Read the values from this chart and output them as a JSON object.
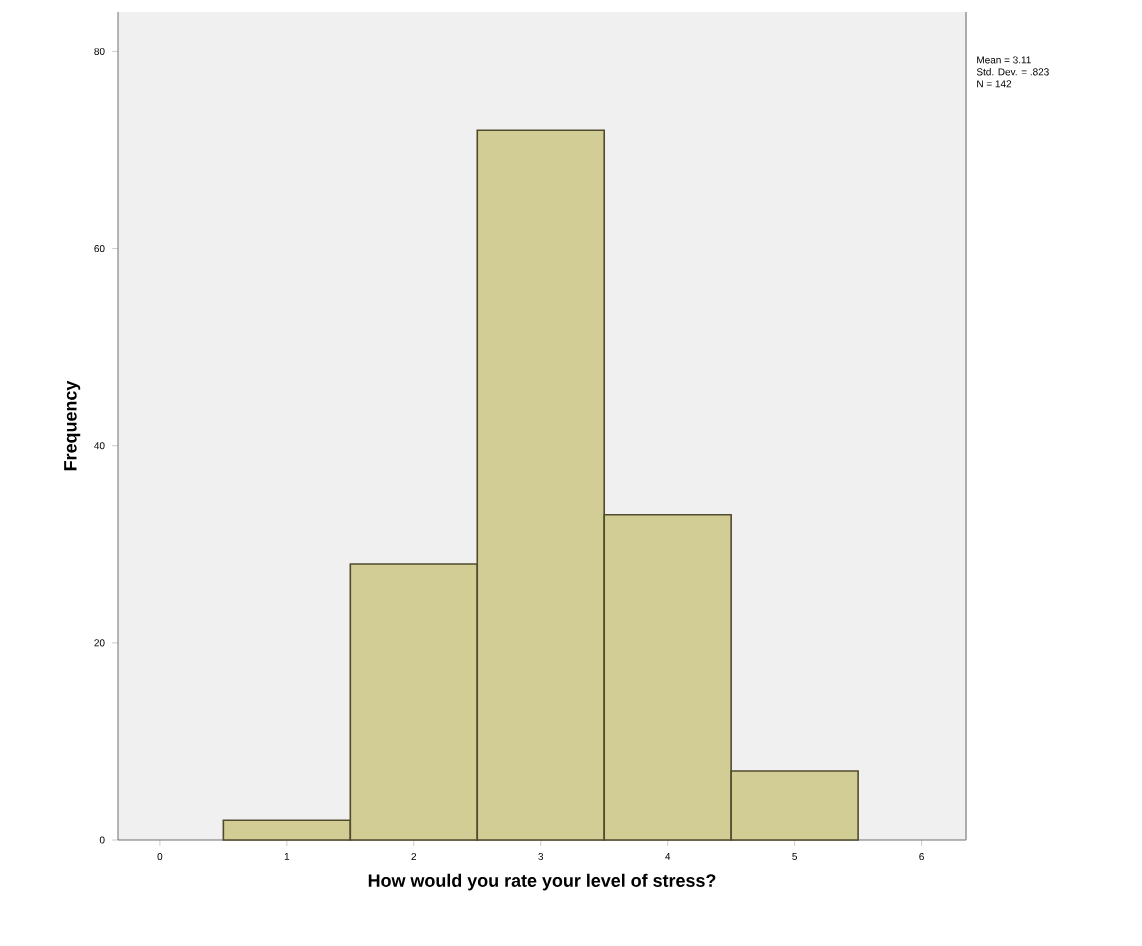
{
  "chart_data": {
    "type": "histogram",
    "xlabel": "How would you rate your level of stress?",
    "ylabel": "Frequency",
    "bins": [
      0.5,
      1.5,
      2.5,
      3.5,
      4.5,
      5.5
    ],
    "values": [
      2,
      28,
      72,
      33,
      7
    ],
    "color": "#d2cd95",
    "xlim": [
      -0.33,
      6.35
    ],
    "ylim": [
      0,
      84
    ],
    "xticks": [
      0,
      1,
      2,
      3,
      4,
      5,
      6
    ],
    "yticks": [
      0,
      20,
      40,
      60,
      80
    ],
    "grid": false,
    "annotations": [
      "Mean = 3.11",
      "Std. Dev. = .823",
      "N = 142"
    ]
  }
}
